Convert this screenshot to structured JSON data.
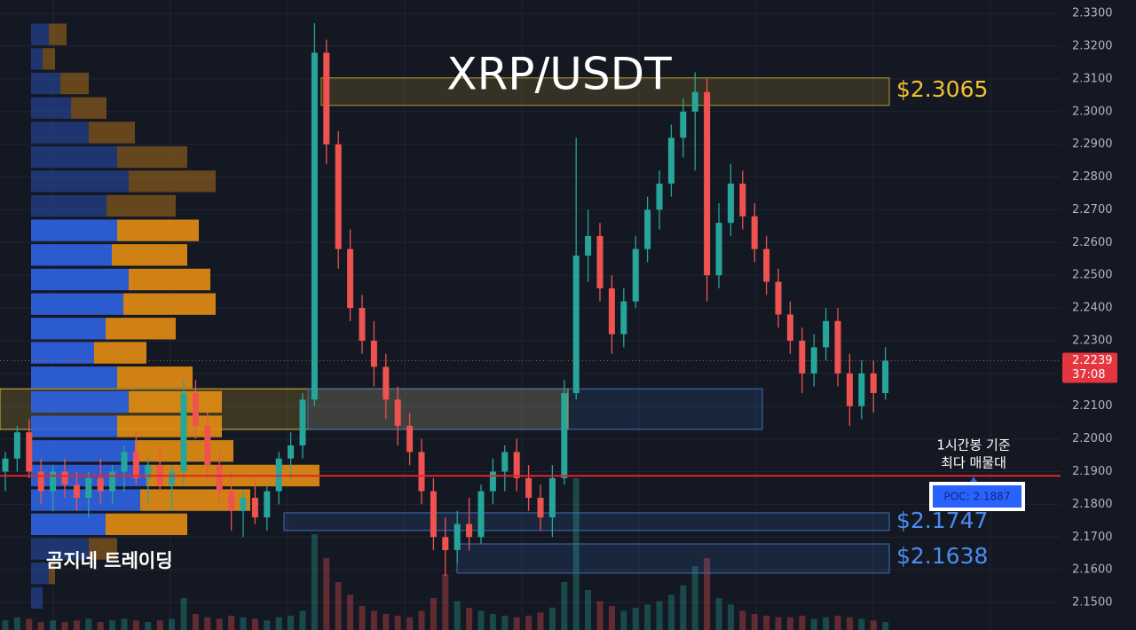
{
  "chart_data": {
    "type": "candlestick",
    "title": "XRP/USDT",
    "watermark": "곰지네 트레이딩",
    "ylim": [
      2.1416,
      2.3341
    ],
    "yticks": [
      {
        "value": 2.33,
        "label": "2.3300"
      },
      {
        "value": 2.32,
        "label": "2.3200"
      },
      {
        "value": 2.31,
        "label": "2.3100"
      },
      {
        "value": 2.3,
        "label": "2.3000"
      },
      {
        "value": 2.29,
        "label": "2.2900"
      },
      {
        "value": 2.28,
        "label": "2.2800"
      },
      {
        "value": 2.27,
        "label": "2.2700"
      },
      {
        "value": 2.26,
        "label": "2.2600"
      },
      {
        "value": 2.25,
        "label": "2.2500"
      },
      {
        "value": 2.24,
        "label": "2.2400"
      },
      {
        "value": 2.23,
        "label": "2.2300"
      },
      {
        "value": 2.22,
        "label": "2.2200"
      },
      {
        "value": 2.21,
        "label": "2.2100"
      },
      {
        "value": 2.2,
        "label": "2.2000"
      },
      {
        "value": 2.19,
        "label": "2.1900"
      },
      {
        "value": 2.18,
        "label": "2.1800"
      },
      {
        "value": 2.17,
        "label": "2.1700"
      },
      {
        "value": 2.16,
        "label": "2.1600"
      },
      {
        "value": 2.15,
        "label": "2.1500"
      }
    ],
    "grid": true,
    "up_color": "#26a69a",
    "down_color": "#ef5350",
    "open": [
      2.19,
      2.194,
      2.202,
      2.19,
      2.184,
      2.19,
      2.186,
      2.182,
      2.188,
      2.184,
      2.19,
      2.196,
      2.188,
      2.192,
      2.186,
      2.19,
      2.214,
      2.204,
      2.192,
      2.184,
      2.178,
      2.182,
      2.176,
      2.184,
      2.194,
      2.198,
      2.212,
      2.318,
      2.29,
      2.258,
      2.24,
      2.23,
      2.222,
      2.212,
      2.204,
      2.196,
      2.184,
      2.17,
      2.166,
      2.174,
      2.17,
      2.184,
      2.19,
      2.196,
      2.188,
      2.182,
      2.176,
      2.188,
      2.214,
      2.256,
      2.262,
      2.246,
      2.232,
      2.242,
      2.258,
      2.27,
      2.278,
      2.292,
      2.3,
      2.306,
      2.25,
      2.266,
      2.278,
      2.268,
      2.258,
      2.248,
      2.238,
      2.23,
      2.22,
      2.228,
      2.236,
      2.22,
      2.21,
      2.22,
      2.214
    ],
    "high": [
      2.196,
      2.204,
      2.206,
      2.194,
      2.192,
      2.194,
      2.19,
      2.19,
      2.194,
      2.192,
      2.198,
      2.202,
      2.194,
      2.198,
      2.192,
      2.218,
      2.218,
      2.208,
      2.196,
      2.19,
      2.184,
      2.188,
      2.186,
      2.196,
      2.202,
      2.214,
      2.327,
      2.322,
      2.294,
      2.264,
      2.244,
      2.236,
      2.226,
      2.216,
      2.208,
      2.2,
      2.188,
      2.176,
      2.178,
      2.182,
      2.186,
      2.194,
      2.198,
      2.2,
      2.192,
      2.186,
      2.192,
      2.218,
      2.292,
      2.27,
      2.266,
      2.25,
      2.246,
      2.262,
      2.274,
      2.282,
      2.296,
      2.304,
      2.312,
      2.31,
      2.272,
      2.284,
      2.282,
      2.272,
      2.262,
      2.252,
      2.242,
      2.234,
      2.232,
      2.24,
      2.24,
      2.226,
      2.224,
      2.224,
      2.228
    ],
    "low": [
      2.184,
      2.19,
      2.188,
      2.18,
      2.178,
      2.182,
      2.178,
      2.176,
      2.18,
      2.18,
      2.184,
      2.186,
      2.18,
      2.184,
      2.178,
      2.186,
      2.2,
      2.188,
      2.18,
      2.172,
      2.17,
      2.174,
      2.172,
      2.18,
      2.188,
      2.194,
      2.21,
      2.284,
      2.252,
      2.236,
      2.226,
      2.216,
      2.206,
      2.198,
      2.192,
      2.18,
      2.166,
      2.158,
      2.162,
      2.166,
      2.168,
      2.18,
      2.184,
      2.184,
      2.178,
      2.172,
      2.17,
      2.186,
      2.212,
      2.248,
      2.242,
      2.226,
      2.228,
      2.24,
      2.254,
      2.264,
      2.274,
      2.286,
      2.282,
      2.242,
      2.246,
      2.262,
      2.264,
      2.254,
      2.244,
      2.234,
      2.226,
      2.214,
      2.216,
      2.224,
      2.216,
      2.204,
      2.206,
      2.208,
      2.212
    ],
    "close": [
      2.194,
      2.202,
      2.19,
      2.184,
      2.19,
      2.186,
      2.182,
      2.188,
      2.184,
      2.19,
      2.196,
      2.188,
      2.192,
      2.186,
      2.19,
      2.214,
      2.204,
      2.192,
      2.184,
      2.178,
      2.182,
      2.176,
      2.184,
      2.194,
      2.198,
      2.212,
      2.318,
      2.29,
      2.258,
      2.24,
      2.23,
      2.222,
      2.212,
      2.204,
      2.196,
      2.184,
      2.17,
      2.166,
      2.174,
      2.17,
      2.184,
      2.19,
      2.196,
      2.188,
      2.182,
      2.176,
      2.188,
      2.214,
      2.256,
      2.262,
      2.246,
      2.232,
      2.242,
      2.258,
      2.27,
      2.278,
      2.292,
      2.3,
      2.306,
      2.25,
      2.266,
      2.278,
      2.268,
      2.258,
      2.248,
      2.238,
      2.23,
      2.22,
      2.228,
      2.236,
      2.22,
      2.21,
      2.22,
      2.214,
      2.2239
    ],
    "volume": [
      6,
      8,
      7,
      5,
      6,
      5,
      6,
      7,
      5,
      6,
      7,
      6,
      5,
      6,
      7,
      20,
      10,
      8,
      7,
      9,
      8,
      7,
      6,
      8,
      9,
      12,
      60,
      45,
      30,
      22,
      15,
      12,
      10,
      9,
      8,
      12,
      20,
      35,
      18,
      14,
      12,
      10,
      9,
      8,
      9,
      11,
      14,
      30,
      95,
      25,
      18,
      15,
      12,
      14,
      16,
      18,
      22,
      28,
      40,
      45,
      20,
      16,
      12,
      10,
      9,
      8,
      8,
      9,
      7,
      8,
      9,
      8,
      7,
      6,
      5
    ],
    "profile": {
      "levels": [
        2.3236,
        2.3161,
        2.3086,
        2.3011,
        2.2936,
        2.2861,
        2.2787,
        2.2712,
        2.2637,
        2.2562,
        2.2487,
        2.2412,
        2.2337,
        2.2263,
        2.2188,
        2.2113,
        2.2038,
        2.1963,
        2.1888,
        2.1813,
        2.1739,
        2.1664,
        2.1589,
        2.1514
      ],
      "buy": [
        20,
        13,
        33,
        45,
        65,
        97,
        110,
        85,
        97,
        91,
        110,
        104,
        84,
        71,
        97,
        110,
        97,
        117,
        130,
        123,
        84,
        65,
        20,
        13
      ],
      "sell": [
        20,
        14,
        32,
        40,
        52,
        79,
        98,
        78,
        92,
        85,
        92,
        104,
        79,
        59,
        85,
        105,
        118,
        111,
        195,
        124,
        92,
        32,
        7,
        0
      ],
      "buy_color": "#2f62e0",
      "sell_color": "#e08c12",
      "value_area": [
        2.17,
        2.2675
      ]
    },
    "zones": [
      {
        "value": 2.3065,
        "label": "$2.3065",
        "top": 2.3103,
        "bottom": 2.3019,
        "color": "#f2c12e"
      },
      {
        "value": 2.1747,
        "label": "$2.1747",
        "top": 2.1774,
        "bottom": 2.172,
        "color": "#4a8df0"
      },
      {
        "value": 2.1638,
        "label": "$2.1638",
        "top": 2.1679,
        "bottom": 2.159,
        "color": "#4a8df0"
      }
    ],
    "band": {
      "top": 2.2153,
      "bottom": 2.2029
    },
    "poc": {
      "value": 2.1887,
      "label": "POC: 2.1887"
    },
    "annotation": [
      "1시간봉 기준",
      "최다 매물대"
    ],
    "last_price": 2.2239,
    "countdown": "37:08"
  }
}
